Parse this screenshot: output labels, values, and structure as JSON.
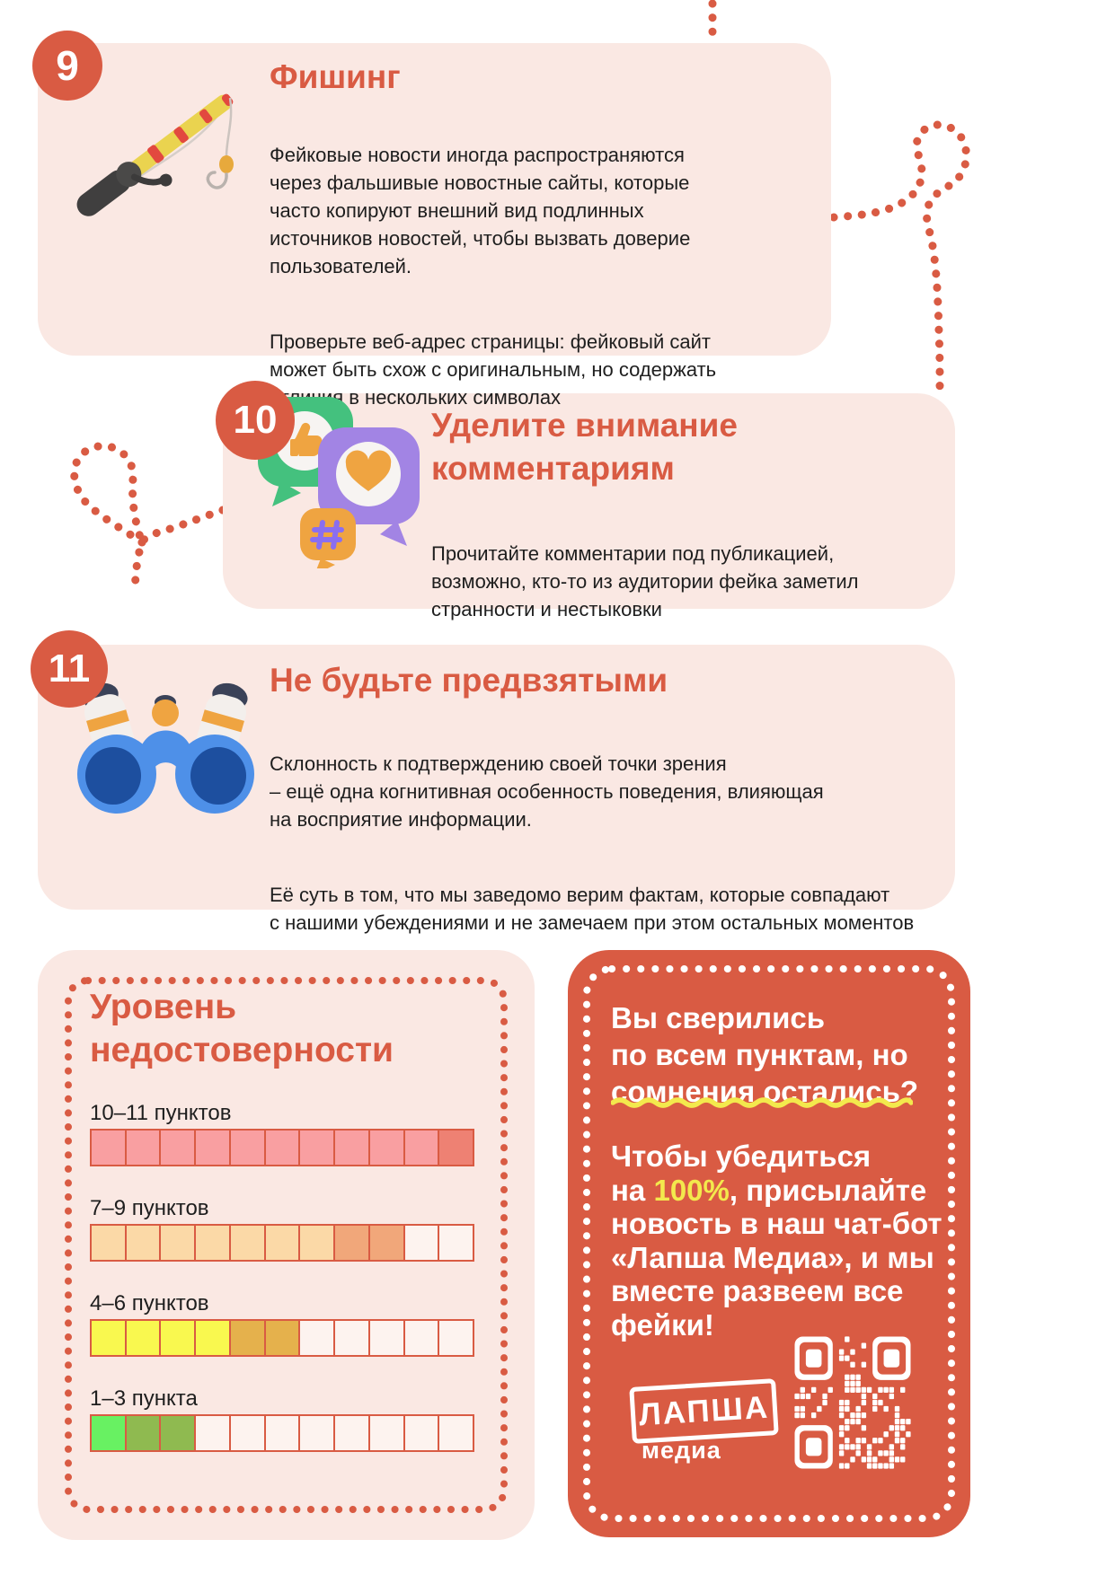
{
  "colors": {
    "accent": "#d95b43",
    "card_bg": "#fae8e3",
    "text": "#1e1e1e",
    "panel_bg": "#d95b43",
    "highlight_yellow": "#f3e94d",
    "cell_empty": "#fdf3ef",
    "cell_border": "#d95b43"
  },
  "cards": [
    {
      "number": "9",
      "title": "Фишинг",
      "icon": "fishing-rod",
      "paragraphs": [
        "Фейковые новости иногда распространяются\nчерез фальшивые новостные сайты, которые\nчасто копируют внешний вид подлинных\nисточников новостей, чтобы вызвать доверие\nпользователей.",
        "Проверьте веб-адрес страницы: фейковый сайт\nможет быть схож с оригинальным, но содержать\nотличия в нескольких символах"
      ]
    },
    {
      "number": "10",
      "title_lines": [
        "Уделите внимание",
        "комментариям"
      ],
      "icon": "speech-bubbles",
      "paragraphs": [
        "Прочитайте комментарии под публикацией,\nвозможно, кто-то из аудитории фейка заметил\nстранности и нестыковки"
      ]
    },
    {
      "number": "11",
      "title": "Не будьте предвзятыми",
      "icon": "binoculars",
      "paragraphs": [
        "Склонность к подтверждению своей точки зрения\n– ещё одна когнитивная особенность поведения, влияющая\nна восприятие информации.",
        "Её суть в том, что мы заведомо верим фактам, которые совпадают\nс нашими убеждениями и не замечаем при этом остальных моментов"
      ]
    }
  ],
  "scale_panel": {
    "title_lines": [
      "Уровень",
      "недостоверности"
    ],
    "rows": [
      {
        "label": "10–11 пунктов",
        "cells_total": 11,
        "filled_primary": 10,
        "filled_secondary": 1,
        "primary_color": "#f99fa1",
        "secondary_color": "#ee8173"
      },
      {
        "label": "7–9 пунктов",
        "cells_total": 11,
        "filled_primary": 7,
        "filled_secondary": 2,
        "primary_color": "#fbd9a7",
        "secondary_color": "#f1a77a"
      },
      {
        "label": "4–6 пунктов",
        "cells_total": 11,
        "filled_primary": 4,
        "filled_secondary": 2,
        "primary_color": "#f9f84f",
        "secondary_color": "#e5b14c"
      },
      {
        "label": "1–3 пункта",
        "cells_total": 11,
        "filled_primary": 1,
        "filled_secondary": 2,
        "primary_color": "#68f162",
        "secondary_color": "#8fba50"
      }
    ]
  },
  "cta_panel": {
    "title_lines": [
      "Вы сверились",
      "по всем пунктам, но",
      "сомнения остались?"
    ],
    "body_lines": [
      "Чтобы убедиться",
      "на 100%, присылайте",
      "новость в наш чат-бот",
      "«Лапша Медиа», и мы",
      "вместе развеем все",
      "фейки!"
    ],
    "highlight": "100%",
    "logo_title": "ЛАПША",
    "logo_subtitle": "медиа"
  }
}
